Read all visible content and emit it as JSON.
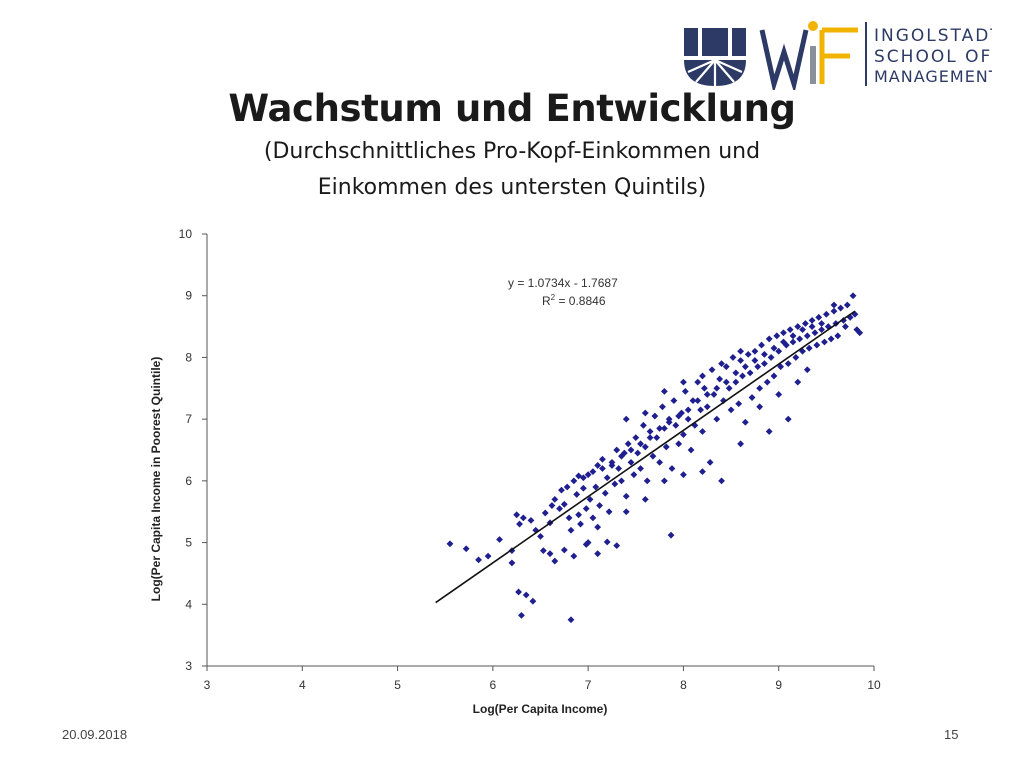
{
  "logo": {
    "mark": "WiF",
    "lines": [
      "INGOLSTADT",
      "SCHOOL OF",
      "MANAGEMENT"
    ],
    "colors": {
      "navy": "#2d3a66",
      "gold": "#f2b300",
      "gray": "#8a8f9c"
    }
  },
  "header": {
    "title": "Wachstum und Entwicklung",
    "subtitle_line1": "(Durchschnittliches Pro-Kopf-Einkommen und",
    "subtitle_line2": "Einkommen des untersten Quintils)"
  },
  "footer": {
    "date": "20.09.2018",
    "page": "15"
  },
  "chart_data": {
    "type": "scatter",
    "title": "",
    "xlabel": "Log(Per Capita Income)",
    "ylabel": "Log(Per Capita Income in Poorest Quintile)",
    "xlim": [
      3,
      10
    ],
    "ylim": [
      3,
      10
    ],
    "xticks": [
      3,
      4,
      5,
      6,
      7,
      8,
      9,
      10
    ],
    "yticks": [
      3,
      4,
      5,
      6,
      7,
      8,
      9,
      10
    ],
    "grid": false,
    "legend": "none",
    "marker_color": "#1f1f8f",
    "annotation": {
      "equation": "y = 1.0734x - 1.7687",
      "r2_label": "R",
      "r2_sup": "2",
      "r2_value": " = 0.8846"
    },
    "trendline": {
      "slope": 1.0734,
      "intercept": -1.7687,
      "x_range": [
        5.4,
        9.8
      ]
    },
    "series": [
      {
        "points": [
          [
            5.55,
            4.98
          ],
          [
            5.72,
            4.9
          ],
          [
            5.85,
            4.72
          ],
          [
            5.95,
            4.78
          ],
          [
            6.07,
            5.05
          ],
          [
            6.2,
            4.87
          ],
          [
            6.2,
            4.67
          ],
          [
            6.27,
            4.2
          ],
          [
            6.3,
            3.82
          ],
          [
            6.35,
            4.15
          ],
          [
            6.42,
            4.05
          ],
          [
            6.82,
            3.75
          ],
          [
            6.53,
            4.87
          ],
          [
            6.6,
            4.82
          ],
          [
            6.65,
            4.7
          ],
          [
            6.75,
            4.88
          ],
          [
            6.85,
            4.78
          ],
          [
            6.98,
            4.97
          ],
          [
            7.1,
            4.82
          ],
          [
            7.2,
            5.01
          ],
          [
            7.3,
            4.95
          ],
          [
            7.87,
            5.12
          ],
          [
            6.25,
            5.45
          ],
          [
            6.28,
            5.3
          ],
          [
            6.32,
            5.4
          ],
          [
            6.4,
            5.36
          ],
          [
            6.45,
            5.2
          ],
          [
            6.5,
            5.1
          ],
          [
            6.55,
            5.48
          ],
          [
            6.6,
            5.32
          ],
          [
            6.62,
            5.6
          ],
          [
            6.65,
            5.7
          ],
          [
            6.7,
            5.55
          ],
          [
            6.72,
            5.85
          ],
          [
            6.75,
            5.62
          ],
          [
            6.78,
            5.9
          ],
          [
            6.8,
            5.4
          ],
          [
            6.82,
            5.2
          ],
          [
            6.85,
            6.0
          ],
          [
            6.88,
            5.78
          ],
          [
            6.9,
            6.08
          ],
          [
            6.92,
            5.3
          ],
          [
            6.95,
            5.88
          ],
          [
            6.98,
            5.55
          ],
          [
            7.0,
            6.1
          ],
          [
            7.02,
            5.7
          ],
          [
            7.05,
            5.4
          ],
          [
            7.08,
            5.9
          ],
          [
            7.1,
            6.25
          ],
          [
            7.12,
            5.6
          ],
          [
            7.15,
            6.35
          ],
          [
            7.18,
            5.8
          ],
          [
            7.2,
            6.05
          ],
          [
            7.22,
            5.5
          ],
          [
            7.25,
            6.3
          ],
          [
            7.28,
            5.95
          ],
          [
            7.3,
            6.5
          ],
          [
            7.32,
            6.2
          ],
          [
            7.35,
            6.0
          ],
          [
            7.38,
            6.45
          ],
          [
            7.4,
            5.75
          ],
          [
            7.42,
            6.6
          ],
          [
            7.45,
            6.3
          ],
          [
            7.48,
            6.1
          ],
          [
            7.5,
            6.7
          ],
          [
            7.52,
            6.45
          ],
          [
            7.55,
            6.2
          ],
          [
            7.58,
            6.9
          ],
          [
            7.6,
            6.55
          ],
          [
            7.62,
            6.0
          ],
          [
            7.65,
            6.8
          ],
          [
            7.68,
            6.4
          ],
          [
            7.7,
            7.05
          ],
          [
            7.72,
            6.7
          ],
          [
            7.75,
            6.3
          ],
          [
            7.78,
            7.2
          ],
          [
            7.8,
            6.85
          ],
          [
            7.82,
            6.55
          ],
          [
            7.85,
            7.0
          ],
          [
            7.88,
            6.2
          ],
          [
            7.9,
            7.3
          ],
          [
            7.92,
            6.9
          ],
          [
            7.95,
            6.6
          ],
          [
            7.98,
            7.1
          ],
          [
            8.0,
            6.75
          ],
          [
            8.02,
            7.45
          ],
          [
            8.05,
            7.0
          ],
          [
            8.08,
            6.5
          ],
          [
            8.1,
            7.3
          ],
          [
            8.12,
            6.9
          ],
          [
            8.15,
            7.6
          ],
          [
            8.18,
            7.15
          ],
          [
            8.2,
            6.8
          ],
          [
            8.22,
            7.5
          ],
          [
            8.25,
            7.2
          ],
          [
            8.28,
            6.3
          ],
          [
            8.3,
            7.8
          ],
          [
            8.32,
            7.4
          ],
          [
            8.35,
            7.0
          ],
          [
            8.38,
            7.65
          ],
          [
            8.4,
            6.0
          ],
          [
            8.42,
            7.3
          ],
          [
            8.45,
            7.85
          ],
          [
            8.48,
            7.5
          ],
          [
            8.5,
            7.15
          ],
          [
            8.52,
            8.0
          ],
          [
            8.55,
            7.6
          ],
          [
            8.58,
            7.25
          ],
          [
            8.6,
            7.95
          ],
          [
            8.62,
            7.7
          ],
          [
            8.65,
            6.95
          ],
          [
            8.68,
            8.05
          ],
          [
            8.7,
            7.75
          ],
          [
            8.72,
            7.35
          ],
          [
            8.75,
            8.1
          ],
          [
            8.78,
            7.85
          ],
          [
            8.8,
            7.5
          ],
          [
            8.82,
            8.2
          ],
          [
            8.85,
            7.9
          ],
          [
            8.88,
            7.6
          ],
          [
            8.9,
            8.3
          ],
          [
            8.92,
            8.0
          ],
          [
            8.95,
            7.7
          ],
          [
            8.98,
            8.35
          ],
          [
            9.0,
            8.1
          ],
          [
            9.02,
            7.85
          ],
          [
            9.05,
            8.4
          ],
          [
            9.08,
            8.2
          ],
          [
            9.1,
            7.9
          ],
          [
            9.12,
            8.45
          ],
          [
            9.15,
            8.25
          ],
          [
            9.18,
            8.0
          ],
          [
            9.2,
            8.5
          ],
          [
            9.22,
            8.3
          ],
          [
            9.25,
            8.1
          ],
          [
            9.28,
            8.55
          ],
          [
            9.3,
            8.35
          ],
          [
            9.32,
            8.15
          ],
          [
            9.35,
            8.6
          ],
          [
            9.38,
            8.4
          ],
          [
            9.4,
            8.2
          ],
          [
            9.42,
            8.65
          ],
          [
            9.45,
            8.45
          ],
          [
            9.48,
            8.25
          ],
          [
            9.5,
            8.7
          ],
          [
            9.52,
            8.5
          ],
          [
            9.55,
            8.3
          ],
          [
            9.58,
            8.75
          ],
          [
            9.6,
            8.55
          ],
          [
            9.62,
            8.35
          ],
          [
            9.65,
            8.8
          ],
          [
            9.68,
            8.6
          ],
          [
            9.7,
            8.5
          ],
          [
            9.72,
            8.85
          ],
          [
            9.75,
            8.65
          ],
          [
            9.78,
            9.0
          ],
          [
            9.8,
            8.7
          ],
          [
            9.82,
            8.45
          ],
          [
            9.85,
            8.4
          ],
          [
            9.58,
            8.85
          ],
          [
            6.95,
            6.05
          ],
          [
            7.05,
            6.15
          ],
          [
            7.15,
            6.2
          ],
          [
            7.25,
            6.25
          ],
          [
            7.35,
            6.4
          ],
          [
            7.45,
            6.5
          ],
          [
            7.55,
            6.6
          ],
          [
            7.65,
            6.7
          ],
          [
            7.75,
            6.85
          ],
          [
            7.85,
            6.95
          ],
          [
            7.95,
            7.05
          ],
          [
            8.05,
            7.15
          ],
          [
            8.15,
            7.3
          ],
          [
            8.25,
            7.4
          ],
          [
            8.35,
            7.5
          ],
          [
            8.45,
            7.6
          ],
          [
            8.55,
            7.75
          ],
          [
            8.65,
            7.85
          ],
          [
            8.75,
            7.95
          ],
          [
            8.85,
            8.05
          ],
          [
            8.95,
            8.15
          ],
          [
            9.05,
            8.25
          ],
          [
            9.15,
            8.35
          ],
          [
            9.25,
            8.45
          ],
          [
            9.35,
            8.5
          ],
          [
            9.45,
            8.55
          ],
          [
            7.4,
            7.0
          ],
          [
            7.6,
            7.1
          ],
          [
            7.8,
            7.45
          ],
          [
            8.0,
            7.6
          ],
          [
            8.2,
            7.7
          ],
          [
            8.4,
            7.9
          ],
          [
            8.6,
            8.1
          ],
          [
            8.8,
            7.2
          ],
          [
            9.0,
            7.4
          ],
          [
            9.2,
            7.6
          ],
          [
            7.0,
            5.0
          ],
          [
            7.1,
            5.25
          ],
          [
            6.9,
            5.45
          ],
          [
            7.4,
            5.5
          ],
          [
            7.6,
            5.7
          ],
          [
            7.8,
            6.0
          ],
          [
            8.0,
            6.1
          ],
          [
            8.2,
            6.15
          ],
          [
            8.6,
            6.6
          ],
          [
            8.9,
            6.8
          ],
          [
            9.1,
            7.0
          ],
          [
            9.3,
            7.8
          ]
        ]
      }
    ]
  }
}
